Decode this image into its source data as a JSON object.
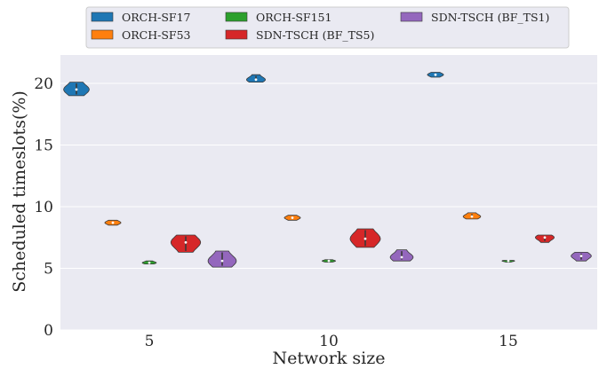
{
  "chart_data": {
    "type": "violin",
    "categories": [
      "5",
      "10",
      "15"
    ],
    "xlabel": "Network size",
    "ylabel": "Scheduled timeslots(%)",
    "ylim": [
      0,
      22.3
    ],
    "yticks": [
      0,
      5,
      10,
      15,
      20
    ],
    "grid": true,
    "legend_position": "top-center",
    "legend_columns": 3,
    "series": [
      {
        "name": "ORCH-SF17",
        "color": "#1f77b4",
        "values": [
          {
            "min": 19.0,
            "max": 20.1,
            "median": 19.5
          },
          {
            "min": 20.1,
            "max": 20.7,
            "median": 20.3
          },
          {
            "min": 20.5,
            "max": 20.9,
            "median": 20.7
          }
        ]
      },
      {
        "name": "ORCH-SF53",
        "color": "#ff7f0e",
        "values": [
          {
            "min": 8.5,
            "max": 8.9,
            "median": 8.7
          },
          {
            "min": 8.9,
            "max": 9.3,
            "median": 9.1
          },
          {
            "min": 9.0,
            "max": 9.5,
            "median": 9.2
          }
        ]
      },
      {
        "name": "ORCH-SF151",
        "color": "#2ca02c",
        "values": [
          {
            "min": 5.35,
            "max": 5.6,
            "median": 5.45
          },
          {
            "min": 5.5,
            "max": 5.7,
            "median": 5.6
          },
          {
            "min": 5.55,
            "max": 5.65,
            "median": 5.6
          }
        ]
      },
      {
        "name": "SDN-TSCH (BF_TS5)",
        "color": "#d62728",
        "values": [
          {
            "min": 6.3,
            "max": 7.7,
            "median": 7.1
          },
          {
            "min": 6.7,
            "max": 8.2,
            "median": 7.4
          },
          {
            "min": 7.1,
            "max": 7.7,
            "median": 7.5
          }
        ]
      },
      {
        "name": "SDN-TSCH (BF_TS1)",
        "color": "#9467bd",
        "values": [
          {
            "min": 5.1,
            "max": 6.4,
            "median": 5.6
          },
          {
            "min": 5.6,
            "max": 6.5,
            "median": 5.9
          },
          {
            "min": 5.6,
            "max": 6.3,
            "median": 6.0
          }
        ]
      }
    ]
  }
}
